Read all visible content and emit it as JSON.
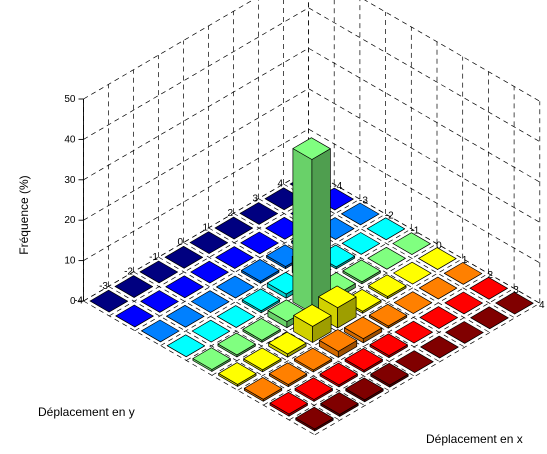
{
  "chart_data": {
    "type": "bar3d",
    "xlabel": "Déplacement en x",
    "ylabel": "Déplacement en y",
    "zlabel": "Fréquence (%)",
    "x": [
      -4,
      -3,
      -2,
      -1,
      0,
      1,
      2,
      3,
      4
    ],
    "y": [
      -4,
      -3,
      -2,
      -1,
      0,
      1,
      2,
      3,
      4
    ],
    "zlim": [
      0,
      50
    ],
    "z_ticks": [
      0,
      10,
      20,
      30,
      40,
      50
    ],
    "x_tick_labels": [
      "-4",
      "-3",
      "-2",
      "-1",
      "0",
      "1",
      "2",
      "3",
      "4"
    ],
    "y_tick_labels": [
      "-4",
      "-3",
      "-2",
      "-1",
      "0",
      "1",
      "2",
      "3",
      "4"
    ],
    "z_tick_labels": [
      "0",
      "10",
      "20",
      "30",
      "40",
      "50"
    ],
    "grid": true,
    "colormap": "jet",
    "values_by_y": [
      [
        0,
        0,
        0,
        0,
        0.5,
        0.5,
        0.5,
        0.5,
        0.5
      ],
      [
        0,
        0,
        0,
        0,
        0.5,
        0.5,
        0.5,
        0.5,
        0.5
      ],
      [
        0,
        0,
        0,
        0,
        0.5,
        0.8,
        0.5,
        0.5,
        0.5
      ],
      [
        0,
        0,
        0,
        0.5,
        1.5,
        4,
        1.5,
        0.5,
        0.5
      ],
      [
        0,
        0,
        0.5,
        1,
        38,
        5,
        1,
        0.5,
        0
      ],
      [
        0,
        0,
        0.5,
        4,
        1,
        0.5,
        0.5,
        0,
        0
      ],
      [
        0,
        0,
        0.5,
        0.5,
        0.5,
        0.5,
        0,
        0,
        0
      ],
      [
        0,
        0,
        0,
        0,
        0,
        0,
        0,
        0,
        0
      ],
      [
        0,
        0,
        0,
        0,
        0,
        0,
        0,
        0,
        0
      ]
    ]
  }
}
